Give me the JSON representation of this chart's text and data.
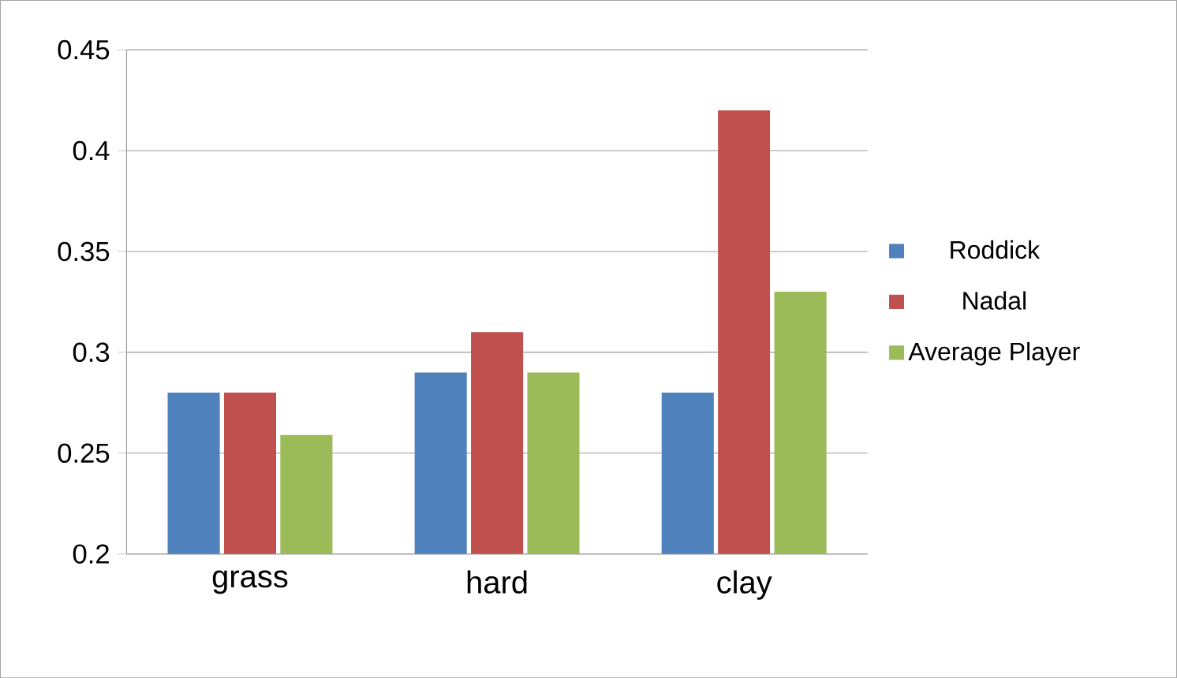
{
  "chart_data": {
    "type": "bar",
    "categories": [
      "grass",
      "hard",
      "clay"
    ],
    "series": [
      {
        "name": "Roddick",
        "color": "#4f81bd",
        "values": [
          0.28,
          0.29,
          0.28
        ]
      },
      {
        "name": "Nadal",
        "color": "#c0504d",
        "values": [
          0.28,
          0.31,
          0.42
        ]
      },
      {
        "name": "Average Player",
        "color": "#9bbb59",
        "values": [
          0.259,
          0.29,
          0.33
        ]
      }
    ],
    "ylim": [
      0.2,
      0.45
    ],
    "yticks": [
      0.2,
      0.25,
      0.3,
      0.35,
      0.4,
      0.45
    ],
    "grid": "y",
    "legend": "right"
  }
}
